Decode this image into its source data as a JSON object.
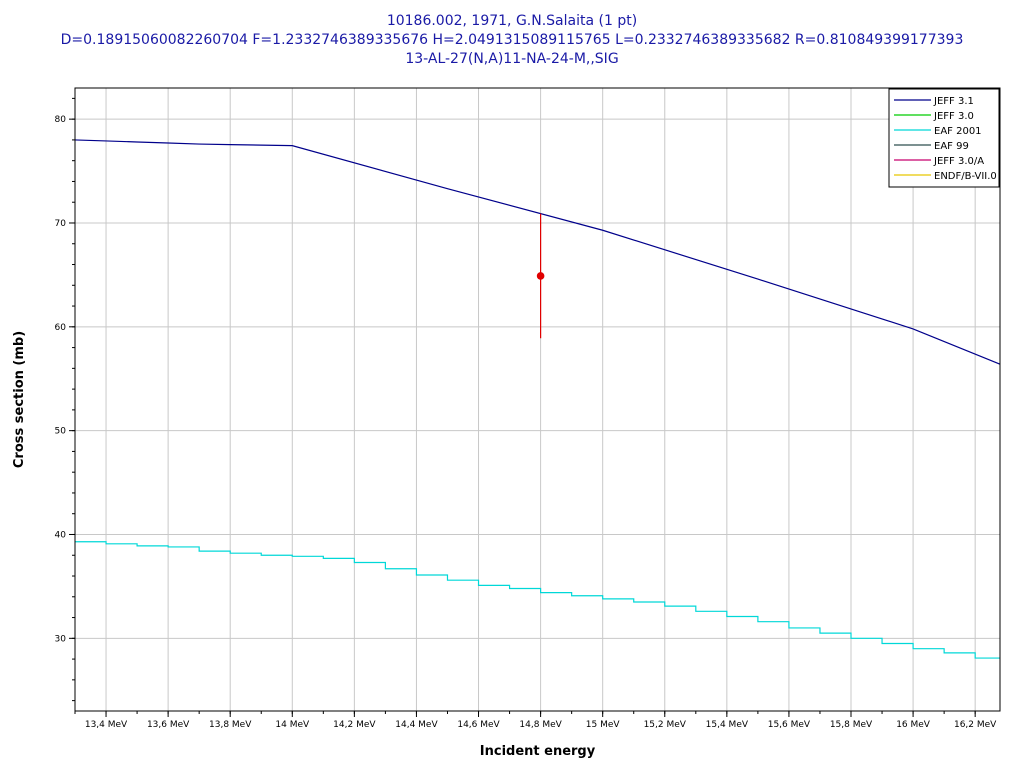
{
  "chart_data": {
    "type": "line",
    "title": {
      "line1": "10186.002, 1971, G.N.Salaita (1 pt)",
      "line2": "D=0.18915060082260704 F=1.2332746389335676 H=2.0491315089115765 L=0.2332746389335682 R=0.810849399177393",
      "line3": "13-AL-27(N,A)11-NA-24-M,,SIG"
    },
    "xlabel": "Incident energy",
    "ylabel": "Cross section (mb)",
    "xlim": [
      13.3,
      16.28
    ],
    "ylim": [
      23,
      83
    ],
    "x_ticks": [
      {
        "value": 13.4,
        "label": "13,4 MeV"
      },
      {
        "value": 13.6,
        "label": "13,6 MeV"
      },
      {
        "value": 13.8,
        "label": "13,8 MeV"
      },
      {
        "value": 14.0,
        "label": "14 MeV"
      },
      {
        "value": 14.2,
        "label": "14,2 MeV"
      },
      {
        "value": 14.4,
        "label": "14,4 MeV"
      },
      {
        "value": 14.6,
        "label": "14,6 MeV"
      },
      {
        "value": 14.8,
        "label": "14,8 MeV"
      },
      {
        "value": 15.0,
        "label": "15 MeV"
      },
      {
        "value": 15.2,
        "label": "15,2 MeV"
      },
      {
        "value": 15.4,
        "label": "15,4 MeV"
      },
      {
        "value": 15.6,
        "label": "15,6 MeV"
      },
      {
        "value": 15.8,
        "label": "15,8 MeV"
      },
      {
        "value": 16.0,
        "label": "16 MeV"
      },
      {
        "value": 16.2,
        "label": "16,2 MeV"
      }
    ],
    "x_minor_step": 0.1,
    "y_ticks": [
      {
        "value": 30,
        "label": "30"
      },
      {
        "value": 40,
        "label": "40"
      },
      {
        "value": 50,
        "label": "50"
      },
      {
        "value": 60,
        "label": "60"
      },
      {
        "value": 70,
        "label": "70"
      },
      {
        "value": 80,
        "label": "80"
      }
    ],
    "y_minor_step": 2,
    "grid": true,
    "legend_position": "top-right",
    "series": [
      {
        "name": "JEFF 3.1",
        "color": "#00008b",
        "style": "line",
        "x": [
          13.3,
          13.4,
          13.5,
          13.6,
          13.7,
          13.8,
          13.9,
          14.0,
          14.5,
          15.0,
          15.5,
          16.0,
          16.28
        ],
        "y": [
          78.0,
          77.9,
          77.8,
          77.7,
          77.6,
          77.55,
          77.5,
          77.45,
          73.3,
          69.3,
          64.6,
          59.8,
          56.4
        ]
      },
      {
        "name": "JEFF 3.0",
        "color": "#00cc00",
        "style": "line",
        "x": [],
        "y": []
      },
      {
        "name": "EAF 2001",
        "color": "#00d8d8",
        "style": "step",
        "x": [
          13.3,
          13.4,
          13.5,
          13.6,
          13.7,
          13.8,
          13.9,
          14.0,
          14.1,
          14.2,
          14.3,
          14.4,
          14.5,
          14.6,
          14.7,
          14.8,
          14.9,
          15.0,
          15.1,
          15.2,
          15.3,
          15.4,
          15.5,
          15.6,
          15.7,
          15.8,
          15.9,
          16.0,
          16.1,
          16.2,
          16.28
        ],
        "y": [
          39.3,
          39.1,
          38.9,
          38.8,
          38.4,
          38.2,
          38.0,
          37.9,
          37.7,
          37.3,
          36.7,
          36.1,
          35.6,
          35.1,
          34.8,
          34.4,
          34.1,
          33.8,
          33.5,
          33.1,
          32.6,
          32.1,
          31.6,
          31.0,
          30.5,
          30.0,
          29.5,
          29.0,
          28.6,
          28.1,
          28.1
        ]
      },
      {
        "name": "EAF 99",
        "color": "#2f4f4f",
        "style": "line",
        "x": [],
        "y": []
      },
      {
        "name": "JEFF 3.0/A",
        "color": "#c8006e",
        "style": "line",
        "x": [],
        "y": []
      },
      {
        "name": "ENDF/B-VII.0",
        "color": "#e6c800",
        "style": "line",
        "x": [],
        "y": []
      }
    ],
    "experimental_points": [
      {
        "x": 14.8,
        "y": 64.9,
        "y_low": 58.9,
        "y_high": 70.9,
        "color": "#e00000"
      }
    ]
  }
}
